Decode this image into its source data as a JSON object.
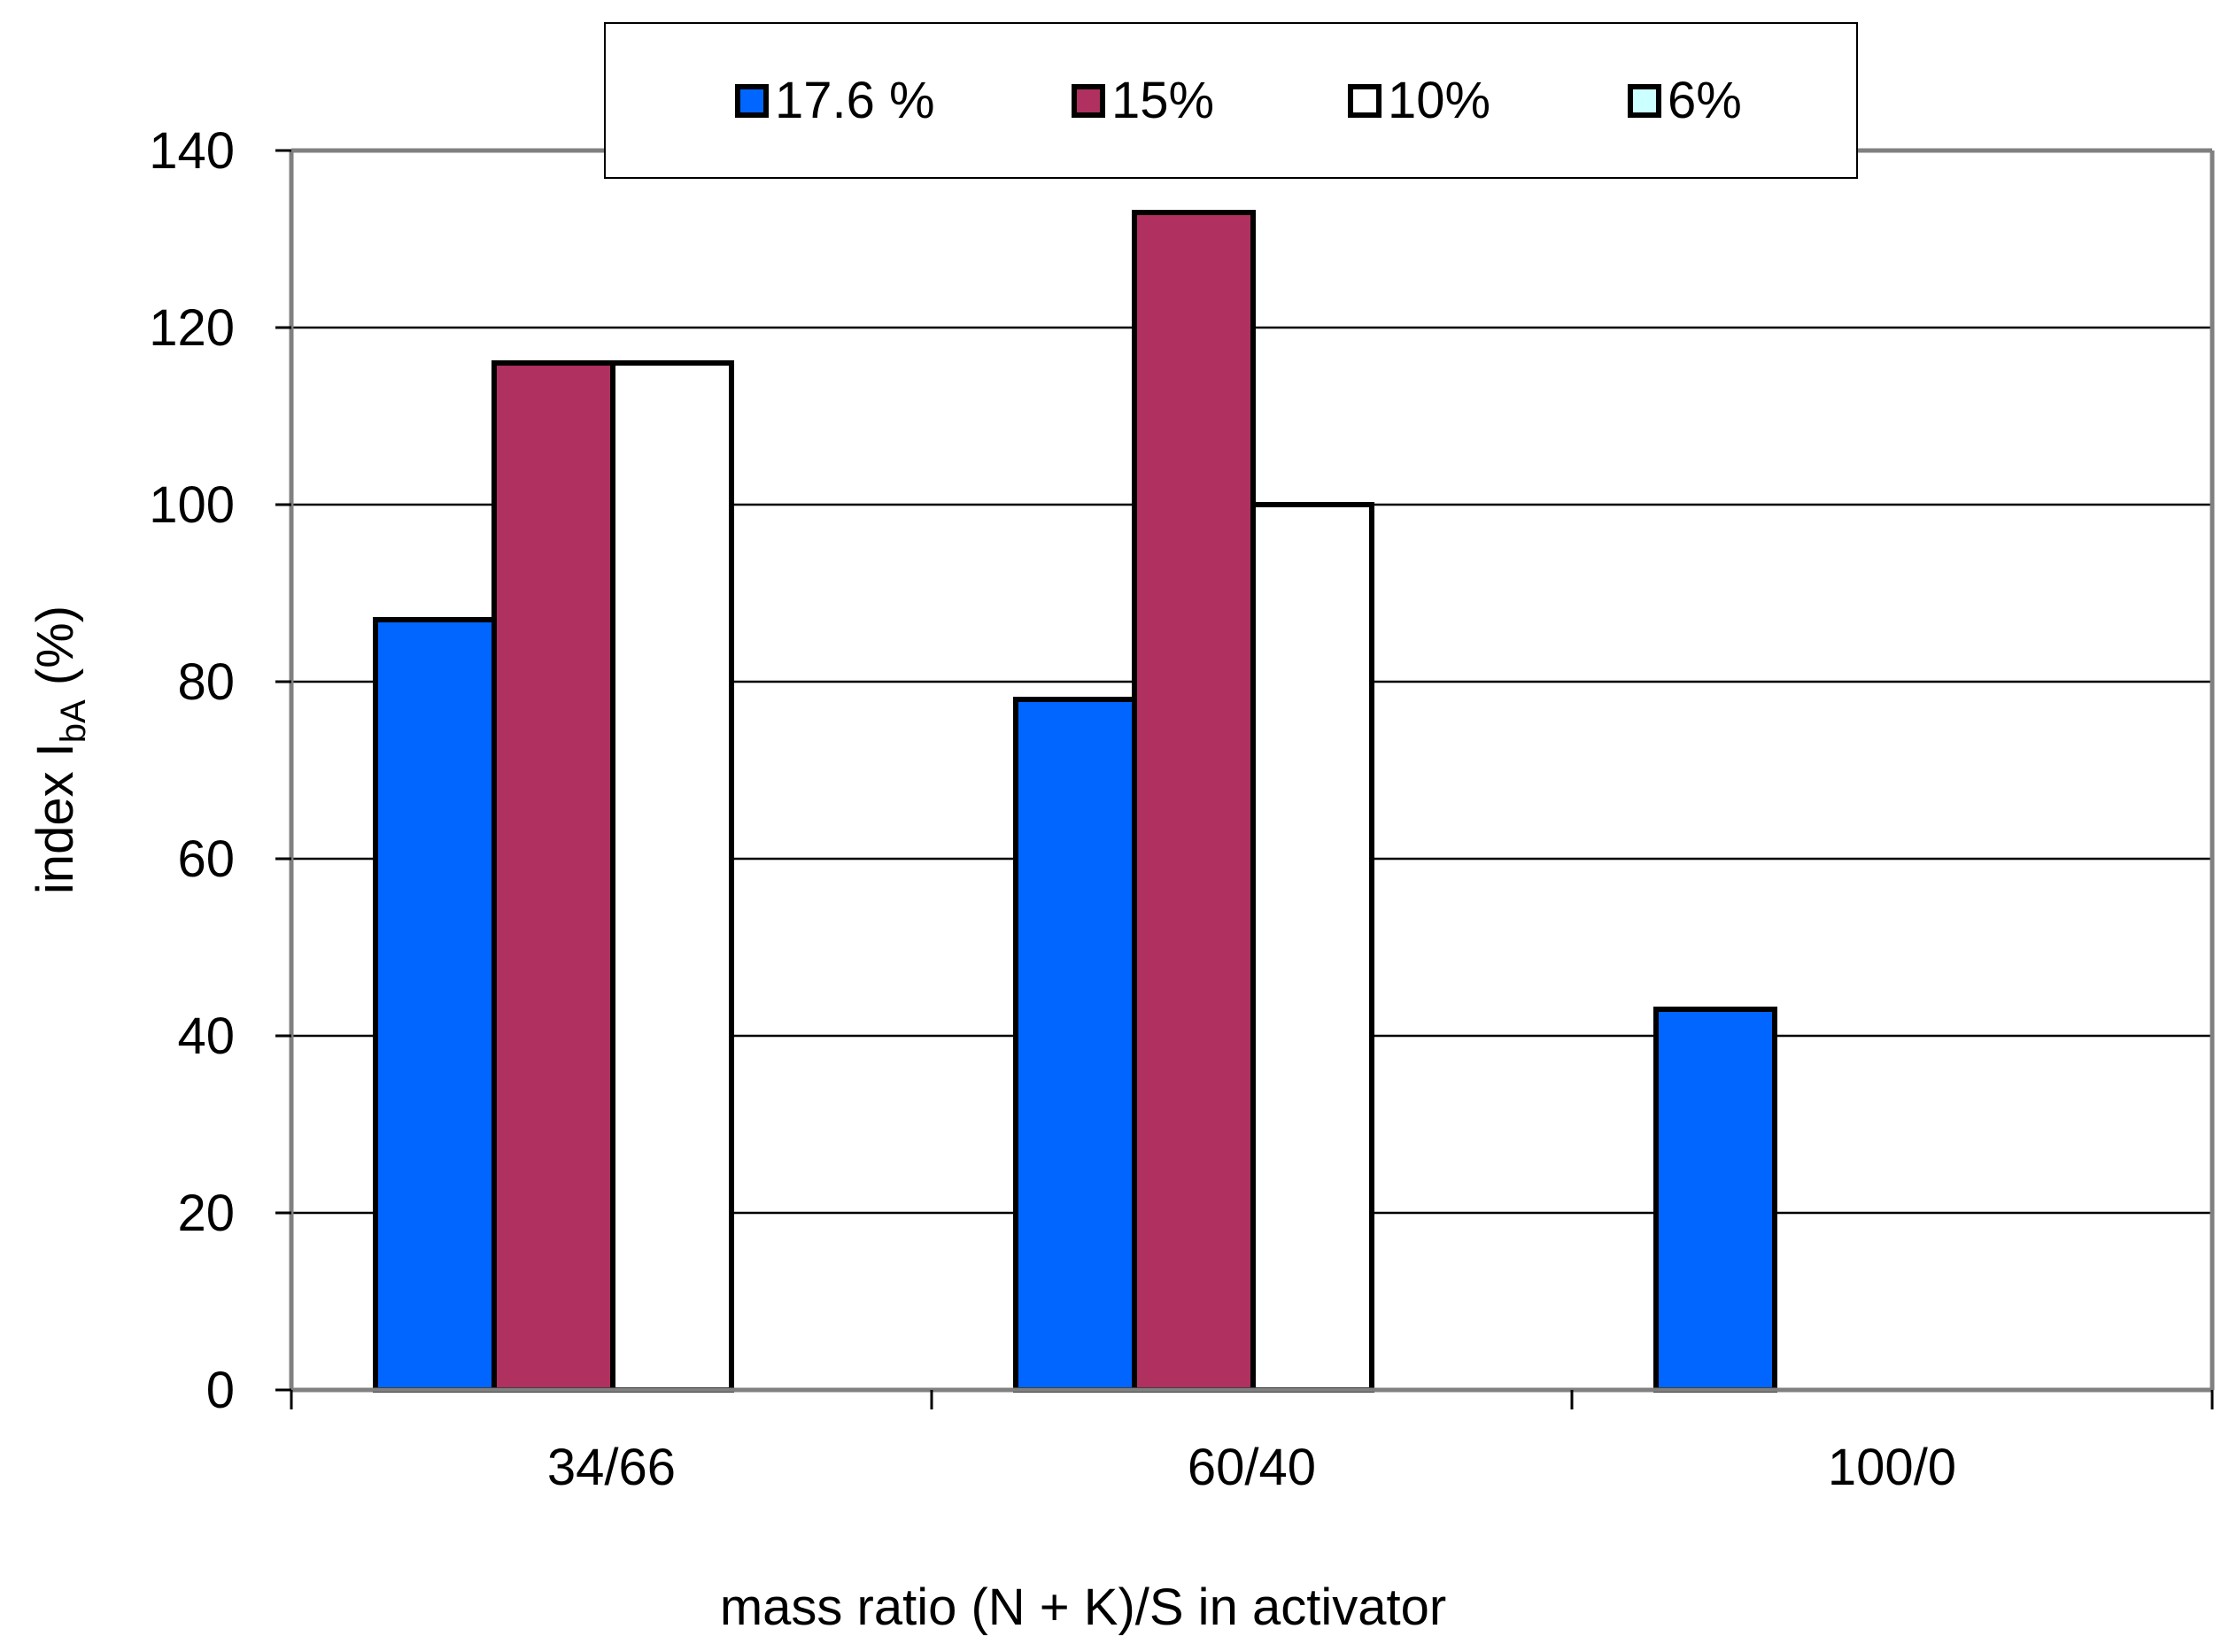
{
  "chart_data": {
    "type": "bar",
    "title": "",
    "categories": [
      "34/66",
      "60/40",
      "100/0"
    ],
    "series": [
      {
        "name": "17.6 %",
        "color": "#0066ff",
        "values": [
          87,
          78,
          43
        ]
      },
      {
        "name": "15%",
        "color": "#b03060",
        "values": [
          116,
          133,
          null
        ]
      },
      {
        "name": "10%",
        "color": "#ffffff",
        "values": [
          116,
          100,
          null
        ]
      },
      {
        "name": "6%",
        "color": "#ccffff",
        "values": [
          null,
          null,
          null
        ]
      }
    ],
    "xlabel": "mass ratio (N + K)/S in activator",
    "ylabel": {
      "main": "index I",
      "subscript": "bA",
      "suffix": " (%)"
    },
    "ylim": [
      0,
      140
    ],
    "yticks": [
      0,
      20,
      40,
      60,
      80,
      100,
      120,
      140
    ],
    "grid": true,
    "legend_position": "top-center"
  }
}
